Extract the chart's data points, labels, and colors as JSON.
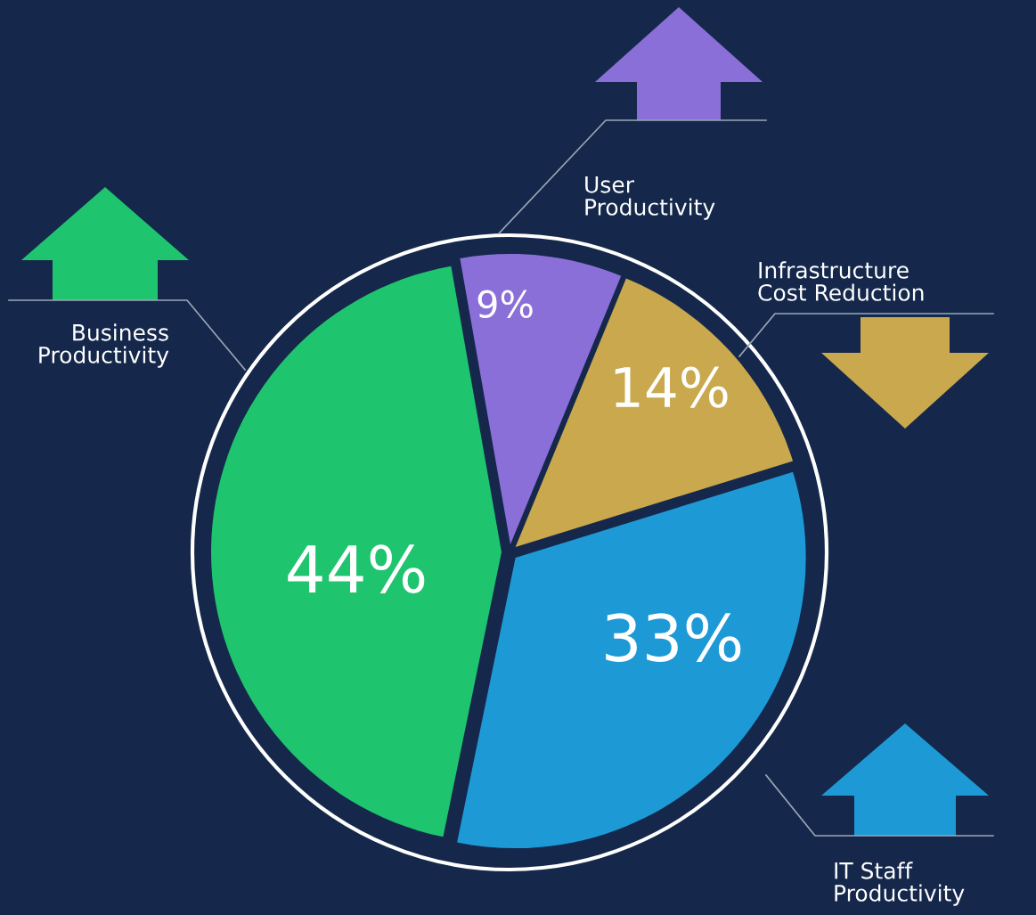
{
  "chart_data": {
    "type": "pie",
    "categories": [
      "User\nProductivity",
      "Infrastructure\nCost Reduction",
      "IT Staff\nProductivity",
      "Business\nProductivity"
    ],
    "values": [
      9,
      14,
      33,
      44
    ],
    "value_labels": [
      "9%",
      "14%",
      "33%",
      "44%"
    ],
    "colors": [
      "#8b6fd8",
      "#c9a84e",
      "#1d9ad6",
      "#1fc46f"
    ],
    "legend": false
  }
}
